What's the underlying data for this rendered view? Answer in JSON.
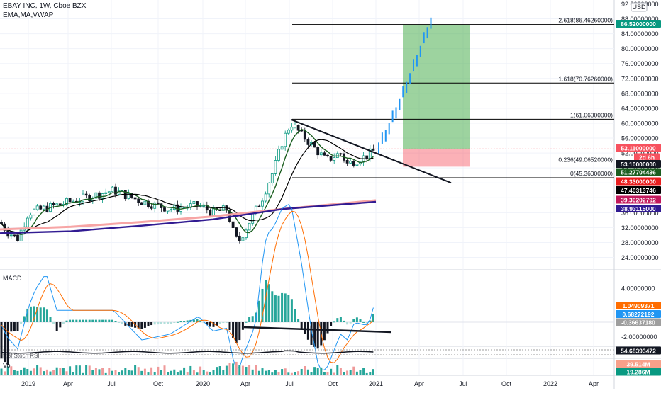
{
  "header": {
    "title": "EBAY INC, 1W, Cboe BZX",
    "indicators": "EMA,MA,VWAP",
    "currency": "USD"
  },
  "panes": {
    "macd_label": "MACD",
    "rsi_label": "RSI Stoch RSI",
    "vol_label": "Vol"
  },
  "price_axis": {
    "min": 20,
    "max": 92,
    "ticks": [
      "92.00000000",
      "88.00000000",
      "84.00000000",
      "80.00000000",
      "76.00000000",
      "72.00000000",
      "68.00000000",
      "64.00000000",
      "60.00000000",
      "56.00000000",
      "52.00000000",
      "48.00000000",
      "44.00000000",
      "40.00000000",
      "36.00000000",
      "32.00000000",
      "28.00000000",
      "24.00000000"
    ]
  },
  "macd_axis": {
    "ticks": [
      "4.00000000",
      "2.00000000",
      "-2.00000000"
    ]
  },
  "time_axis": {
    "labels": [
      "2019",
      "Apr",
      "Jul",
      "Oct",
      "2020",
      "Apr",
      "Jul",
      "Oct",
      "2021",
      "Apr",
      "Jul",
      "Oct",
      "2022",
      "Apr"
    ]
  },
  "badges": [
    {
      "text": "86.52000000",
      "color": "#089981"
    },
    {
      "text": "53.11000000",
      "color": "#f7525f"
    },
    {
      "text": "2d 6h",
      "color": "#f7525f"
    },
    {
      "text": "53.10000000",
      "color": "#131722"
    },
    {
      "text": "51.27704436",
      "color": "#1b5e20"
    },
    {
      "text": "48.33000000",
      "color": "#e91e1e"
    },
    {
      "text": "47.40313746",
      "color": "#000000"
    },
    {
      "text": "39.30202792",
      "color": "#c2185b"
    },
    {
      "text": "38.93115000",
      "color": "#311b92"
    },
    {
      "text": "1.04909371",
      "color": "#ff6d00"
    },
    {
      "text": "0.68272192",
      "color": "#2196f3"
    },
    {
      "text": "-0.36637180",
      "color": "#9e9e9e"
    },
    {
      "text": "54.68393472",
      "color": "#131722"
    },
    {
      "text": "39.514M",
      "color": "#f7a08a"
    },
    {
      "text": "19.286M",
      "color": "#089981"
    }
  ],
  "fib_levels": [
    {
      "label": "2.618(86.46260000)",
      "value": 86.4626
    },
    {
      "label": "1.618(70.76260000)",
      "value": 70.7626
    },
    {
      "label": "1(61.06000000)",
      "value": 61.06
    },
    {
      "label": "0.236(49.06520000)",
      "value": 49.0652
    },
    {
      "label": "0(45.36000000)",
      "value": 45.36
    }
  ],
  "chart_data": {
    "type": "candlestick",
    "title": "EBAY INC, 1W, Cboe BZX",
    "x_dates": [
      "2019",
      "Apr",
      "Jul",
      "Oct",
      "2020",
      "Apr",
      "Jul",
      "Oct",
      "2021"
    ],
    "close_monthly": [
      33,
      37,
      39,
      36,
      37,
      32,
      36,
      56,
      59,
      51,
      52,
      53
    ],
    "close_dates": [
      "2019-01",
      "2019-04",
      "2019-07",
      "2019-10",
      "2020-01",
      "2020-03",
      "2020-04",
      "2020-07",
      "2020-08",
      "2020-10",
      "2020-12",
      "2021-01"
    ],
    "forecast_path_end": 86.52,
    "position": {
      "entry": 53.11,
      "target": 86.52,
      "stop": 48.33
    },
    "trendline_start": 61,
    "ylim": [
      20,
      92
    ]
  }
}
